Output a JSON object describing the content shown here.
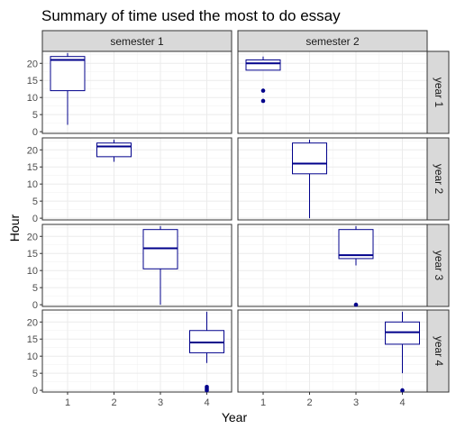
{
  "chart_data": {
    "type": "boxplot",
    "title": "Summary of time used the most to do essay",
    "xlabel": "Year",
    "ylabel": "Hour",
    "x_categories": [
      "1",
      "2",
      "3",
      "4"
    ],
    "y_ticks": [
      0,
      5,
      10,
      15,
      20
    ],
    "ylim": [
      -0.5,
      23.5
    ],
    "grid": true,
    "facet_columns": [
      "semester 1",
      "semester 2"
    ],
    "facet_rows": [
      "year 1",
      "year 2",
      "year 3",
      "year 4"
    ],
    "colors": {
      "box_stroke": "#00008B",
      "median": "#00008B",
      "outlier": "#00008B",
      "strip_fill": "#d9d9d9",
      "grid": "#ebebeb",
      "panel_border": "#333333"
    },
    "boxes": [
      {
        "row": 0,
        "col": 0,
        "x": 1,
        "min": 2,
        "q1": 12,
        "median": 21,
        "q3": 22,
        "max": 23,
        "outliers": []
      },
      {
        "row": 0,
        "col": 1,
        "x": 1,
        "min": 18,
        "q1": 18,
        "median": 20,
        "q3": 21,
        "max": 22,
        "outliers": [
          12,
          9
        ]
      },
      {
        "row": 1,
        "col": 0,
        "x": 2,
        "min": 16.5,
        "q1": 18,
        "median": 21,
        "q3": 22,
        "max": 23,
        "outliers": []
      },
      {
        "row": 1,
        "col": 1,
        "x": 2,
        "min": 0,
        "q1": 13,
        "median": 16,
        "q3": 22,
        "max": 23,
        "outliers": []
      },
      {
        "row": 2,
        "col": 0,
        "x": 3,
        "min": 0,
        "q1": 10.5,
        "median": 16.5,
        "q3": 22,
        "max": 23,
        "outliers": []
      },
      {
        "row": 2,
        "col": 1,
        "x": 3,
        "min": 11.5,
        "q1": 13.5,
        "median": 14.5,
        "q3": 22,
        "max": 23,
        "outliers": [
          0
        ]
      },
      {
        "row": 3,
        "col": 0,
        "x": 4,
        "min": 8,
        "q1": 11,
        "median": 14,
        "q3": 17.5,
        "max": 23,
        "outliers": [
          0,
          0.5,
          1
        ]
      },
      {
        "row": 3,
        "col": 1,
        "x": 4,
        "min": 5,
        "q1": 13.5,
        "median": 17,
        "q3": 20,
        "max": 23,
        "outliers": [
          0
        ]
      }
    ]
  }
}
